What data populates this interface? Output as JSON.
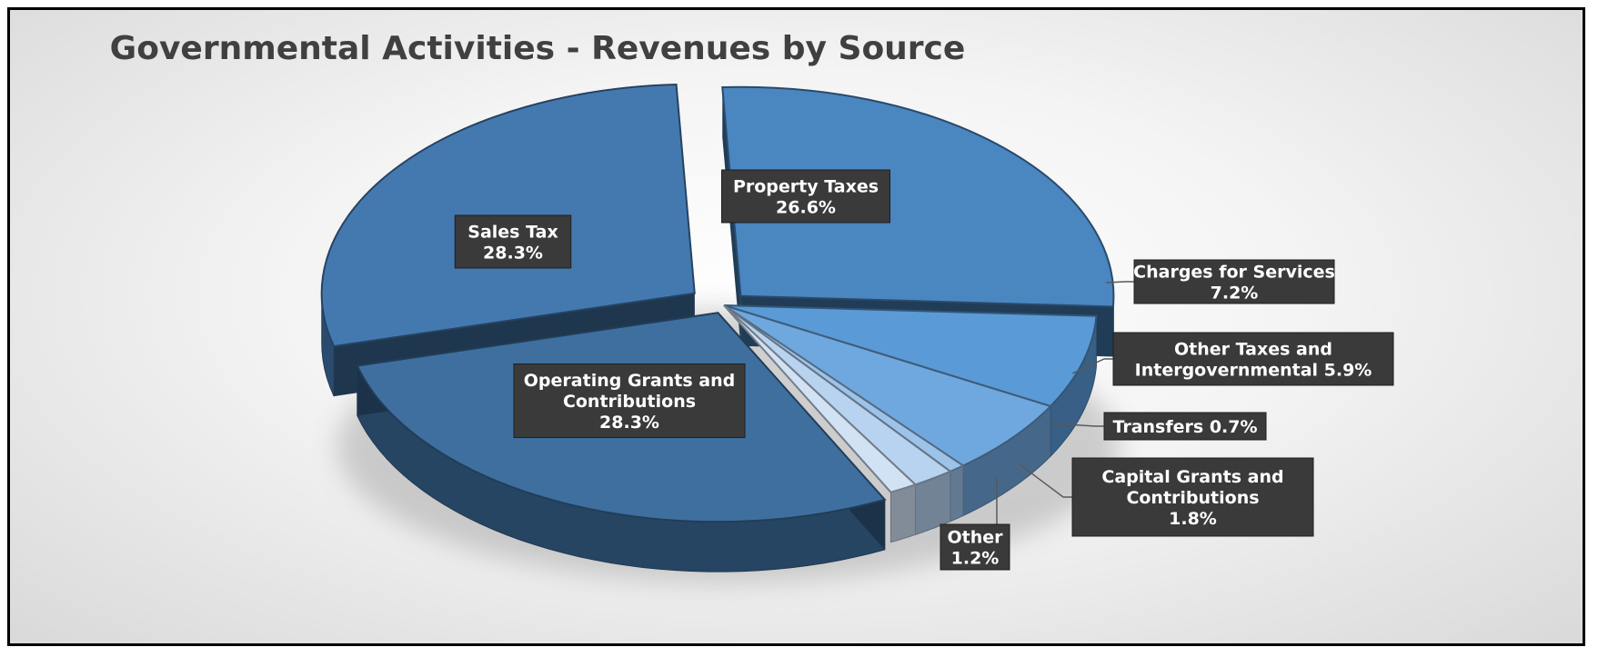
{
  "chart_data": {
    "type": "pie",
    "title": "Governmental Activities - Revenues by Source",
    "slices": [
      {
        "label": "Property Taxes",
        "value": 26.6,
        "display": "26.6%",
        "color": "#4a86c0"
      },
      {
        "label": "Charges for Services",
        "value": 7.2,
        "display": "7.2%",
        "color": "#5a9ad6"
      },
      {
        "label": "Other Taxes and Intergovernmental",
        "value": 5.9,
        "display": "5.9%",
        "color": "#6fa8de"
      },
      {
        "label": "Transfers",
        "value": 0.7,
        "display": "0.7%",
        "color": "#9cc3ea"
      },
      {
        "label": "Capital Grants and Contributions",
        "value": 1.8,
        "display": "1.8%",
        "color": "#b7d3f0"
      },
      {
        "label": "Other",
        "value": 1.2,
        "display": "1.2%",
        "color": "#d2e2f5"
      },
      {
        "label": "Operating Grants and Contributions",
        "value": 28.3,
        "display": "28.3%",
        "color": "#3e6f9f"
      },
      {
        "label": "Sales Tax",
        "value": 28.3,
        "display": "28.3%",
        "color": "#4479b0"
      }
    ],
    "labels": [
      {
        "lines": [
          "Property Taxes",
          "26.6%"
        ],
        "style": "inside"
      },
      {
        "lines": [
          "Charges for Services",
          "7.2%"
        ],
        "style": "callout"
      },
      {
        "lines": [
          "Other Taxes and",
          "Intergovernmental 5.9%"
        ],
        "style": "callout"
      },
      {
        "lines": [
          "Transfers 0.7%"
        ],
        "style": "callout"
      },
      {
        "lines": [
          "Capital Grants and",
          "Contributions",
          "1.8%"
        ],
        "style": "callout"
      },
      {
        "lines": [
          "Other",
          "1.2%"
        ],
        "style": "callout"
      },
      {
        "lines": [
          "Operating Grants and",
          "Contributions",
          "28.3%"
        ],
        "style": "inside"
      },
      {
        "lines": [
          "Sales Tax",
          "28.3%"
        ],
        "style": "inside"
      }
    ],
    "legend": "none",
    "style": "3d-exploded"
  }
}
